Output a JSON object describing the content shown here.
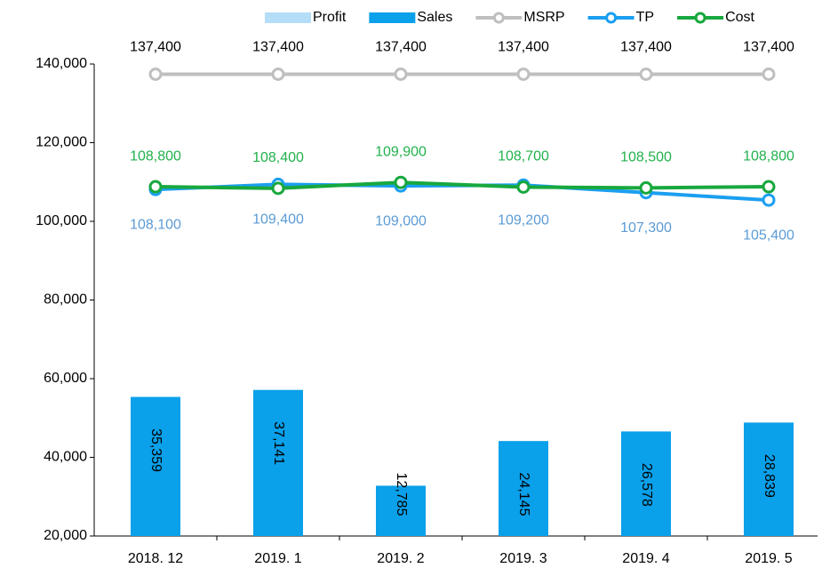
{
  "chart_data": {
    "type": "bar-line",
    "categories": [
      "2018. 12",
      "2019. 1",
      "2019. 2",
      "2019. 3",
      "2019. 4",
      "2019. 5"
    ],
    "series": [
      {
        "name": "Profit",
        "type": "bar",
        "color": "#b4ddf7",
        "axis": "y2",
        "values": [
          null,
          null,
          null,
          null,
          null,
          null
        ]
      },
      {
        "name": "Sales",
        "type": "bar",
        "color": "#0aa0ea",
        "axis": "y2",
        "values": [
          35359,
          37141,
          12785,
          24145,
          26578,
          28839
        ],
        "value_labels": [
          "35,359",
          "37,141",
          "12,785",
          "24,145",
          "26,578",
          "28,839"
        ]
      },
      {
        "name": "MSRP",
        "type": "line",
        "color": "#bfbfbf",
        "label_color": "#000000",
        "label_position": "above",
        "values": [
          137400,
          137400,
          137400,
          137400,
          137400,
          137400
        ],
        "value_labels": [
          "137,400",
          "137,400",
          "137,400",
          "137,400",
          "137,400",
          "137,400"
        ]
      },
      {
        "name": "TP",
        "type": "line",
        "color": "#1b9ff0",
        "label_color": "#5b9bd5",
        "label_position": "below",
        "values": [
          108100,
          109400,
          109000,
          109200,
          107300,
          105400
        ],
        "value_labels": [
          "108,100",
          "109,400",
          "109,000",
          "109,200",
          "107,300",
          "105,400"
        ]
      },
      {
        "name": "Cost",
        "type": "line",
        "color": "#18a83e",
        "label_color": "#22b14c",
        "label_position": "above",
        "values": [
          108800,
          108400,
          109900,
          108700,
          108500,
          108800
        ],
        "value_labels": [
          "108,800",
          "108,400",
          "109,900",
          "108,700",
          "108,500",
          "108,800"
        ]
      }
    ],
    "ylim": [
      20000,
      140000
    ],
    "yticks": [
      {
        "value": 20000,
        "label": "20,000"
      },
      {
        "value": 40000,
        "label": "40,000"
      },
      {
        "value": 60000,
        "label": "60,000"
      },
      {
        "value": 80000,
        "label": "80,000"
      },
      {
        "value": 100000,
        "label": "100,000"
      },
      {
        "value": 120000,
        "label": "120,000"
      },
      {
        "value": 140000,
        "label": "140,000"
      }
    ],
    "y2lim": [
      0,
      120000
    ],
    "grid": false,
    "legend": "top"
  }
}
